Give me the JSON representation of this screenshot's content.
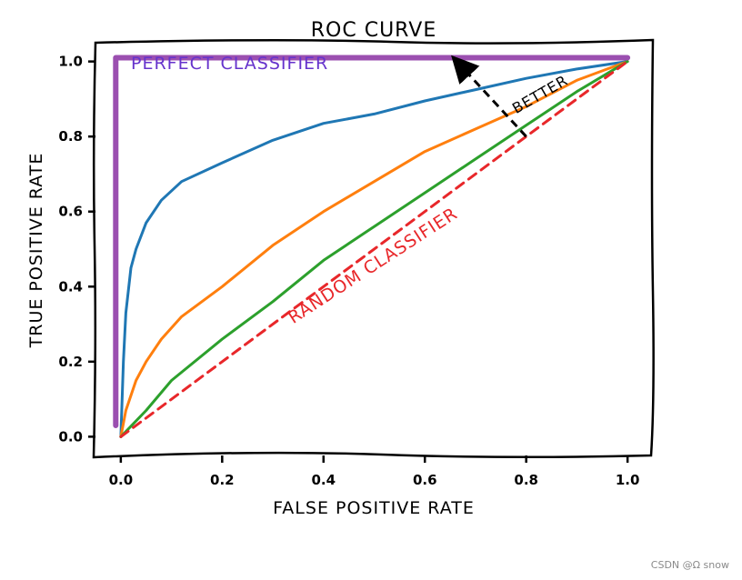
{
  "chart_data": {
    "type": "line",
    "title": "ROC CURVE",
    "xlabel": "FALSE POSITIVE RATE",
    "ylabel": "TRUE POSITIVE RATE",
    "xlim": [
      -0.05,
      1.05
    ],
    "ylim": [
      -0.05,
      1.05
    ],
    "xticks": [
      "0.0",
      "0.2",
      "0.4",
      "0.6",
      "0.8",
      "1.0"
    ],
    "yticks": [
      "0.0",
      "0.2",
      "0.4",
      "0.6",
      "0.8",
      "1.0"
    ],
    "grid": false,
    "legend": "none",
    "series": [
      {
        "color": "#1f77b4",
        "x": [
          0,
          0.005,
          0.01,
          0.02,
          0.03,
          0.05,
          0.08,
          0.12,
          0.2,
          0.3,
          0.4,
          0.5,
          0.6,
          0.7,
          0.8,
          0.9,
          1.0
        ],
        "y": [
          0,
          0.2,
          0.33,
          0.45,
          0.5,
          0.57,
          0.63,
          0.68,
          0.73,
          0.79,
          0.835,
          0.86,
          0.895,
          0.925,
          0.955,
          0.98,
          1.0
        ]
      },
      {
        "color": "#ff7f0e",
        "x": [
          0,
          0.01,
          0.03,
          0.05,
          0.08,
          0.12,
          0.2,
          0.3,
          0.4,
          0.5,
          0.6,
          0.7,
          0.8,
          0.9,
          1.0
        ],
        "y": [
          0,
          0.07,
          0.15,
          0.2,
          0.26,
          0.32,
          0.4,
          0.51,
          0.6,
          0.68,
          0.76,
          0.82,
          0.88,
          0.95,
          1.0
        ]
      },
      {
        "color": "#2ca02c",
        "x": [
          0,
          0.05,
          0.1,
          0.2,
          0.3,
          0.4,
          0.5,
          0.6,
          0.7,
          0.8,
          0.9,
          1.0
        ],
        "y": [
          0,
          0.07,
          0.15,
          0.26,
          0.36,
          0.47,
          0.56,
          0.65,
          0.74,
          0.83,
          0.92,
          1.0
        ]
      },
      {
        "color": "#e8272a",
        "dashed": true,
        "x": [
          0,
          1
        ],
        "y": [
          0,
          1
        ]
      },
      {
        "color": "#9b4fb0",
        "x": [
          -0.01,
          -0.01,
          1.0
        ],
        "y": [
          0.03,
          1.01,
          1.01
        ]
      }
    ],
    "annotations": [
      {
        "text": "PERFECT CLASSIFIER",
        "color": "#6633cc",
        "x": 0.02,
        "y": 0.98
      },
      {
        "text": "RANDOM CLASSIFIER",
        "color": "#e8272a",
        "x": 0.34,
        "y": 0.3,
        "rotation_deg": -33
      },
      {
        "text": "BETTER",
        "color": "#000000",
        "x": 0.78,
        "y": 0.86,
        "rotation_deg": -30
      }
    ],
    "arrow": {
      "from": [
        0.8,
        0.8
      ],
      "to": [
        0.67,
        0.99
      ],
      "color": "#000000",
      "dashed": true
    }
  },
  "watermark": "CSDN @Ω snow"
}
